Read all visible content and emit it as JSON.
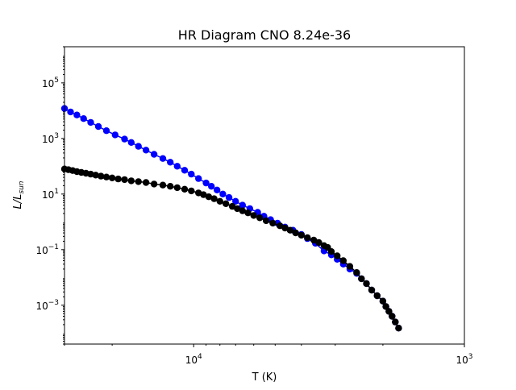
{
  "chart_data": {
    "type": "scatter",
    "title": "HR Diagram CNO 8.24e-36",
    "xlabel": "T (K)",
    "ylabel": "L/L",
    "ylabel_sub": "sun",
    "x_scale": "log",
    "x_inverted": true,
    "y_scale": "log",
    "xlim": [
      30000,
      1000
    ],
    "ylim": [
      4e-05,
      2000000
    ],
    "x_ticks": [
      {
        "value": 10000,
        "base": "10",
        "exp": "4"
      },
      {
        "value": 1000,
        "base": "10",
        "exp": "3"
      }
    ],
    "y_ticks": [
      {
        "value": 0.001,
        "base": "10",
        "exp": "−3"
      },
      {
        "value": 0.1,
        "base": "10",
        "exp": "−1"
      },
      {
        "value": 10,
        "base": "10",
        "exp": "1"
      },
      {
        "value": 1000,
        "base": "10",
        "exp": "3"
      },
      {
        "value": 100000,
        "base": "10",
        "exp": "5"
      }
    ],
    "grid": false,
    "legend": "none",
    "series": [
      {
        "color": "#0000ff",
        "points": [
          [
            30000,
            12000
          ],
          [
            28500,
            9000
          ],
          [
            27000,
            7000
          ],
          [
            25500,
            5200
          ],
          [
            24000,
            3800
          ],
          [
            22500,
            2700
          ],
          [
            21000,
            1900
          ],
          [
            19500,
            1350
          ],
          [
            18000,
            950
          ],
          [
            17000,
            720
          ],
          [
            16000,
            520
          ],
          [
            15000,
            380
          ],
          [
            14000,
            270
          ],
          [
            13000,
            190
          ],
          [
            12200,
            140
          ],
          [
            11500,
            100
          ],
          [
            10800,
            72
          ],
          [
            10200,
            52
          ],
          [
            9600,
            36
          ],
          [
            9000,
            25
          ],
          [
            8600,
            19
          ],
          [
            8200,
            14
          ],
          [
            7800,
            10
          ],
          [
            7400,
            7.5
          ],
          [
            7000,
            5.5
          ],
          [
            6600,
            4
          ],
          [
            6200,
            3
          ],
          [
            5800,
            2.2
          ],
          [
            5500,
            1.6
          ],
          [
            5200,
            1.2
          ],
          [
            4900,
            0.9
          ],
          [
            4600,
            0.65
          ],
          [
            4300,
            0.5
          ],
          [
            4000,
            0.35
          ],
          [
            3800,
            0.25
          ],
          [
            3550,
            0.17
          ],
          [
            3300,
            0.09
          ],
          [
            3100,
            0.065
          ],
          [
            2950,
            0.045
          ],
          [
            2800,
            0.03
          ],
          [
            2650,
            0.02
          ],
          [
            2500,
            0.014
          ],
          [
            2400,
            0.009
          ],
          [
            2300,
            0.006
          ],
          [
            2200,
            0.0035
          ],
          [
            2100,
            0.0022
          ],
          [
            2000,
            0.0014
          ],
          [
            1950,
            0.0009
          ],
          [
            1900,
            0.0006
          ],
          [
            1850,
            0.0004
          ],
          [
            1800,
            0.00025
          ],
          [
            1750,
            0.00015
          ]
        ]
      },
      {
        "color": "#000000",
        "points": [
          [
            30000,
            80
          ],
          [
            29000,
            75
          ],
          [
            28000,
            70
          ],
          [
            27000,
            64
          ],
          [
            26000,
            60
          ],
          [
            25000,
            56
          ],
          [
            24000,
            52
          ],
          [
            23000,
            48
          ],
          [
            22000,
            44
          ],
          [
            21000,
            41
          ],
          [
            20000,
            38
          ],
          [
            19000,
            35
          ],
          [
            18000,
            33
          ],
          [
            17000,
            30
          ],
          [
            16000,
            28
          ],
          [
            15000,
            26
          ],
          [
            14000,
            23
          ],
          [
            13000,
            21
          ],
          [
            12200,
            19
          ],
          [
            11500,
            17
          ],
          [
            10800,
            15
          ],
          [
            10200,
            13
          ],
          [
            9600,
            11
          ],
          [
            9200,
            9.5
          ],
          [
            8800,
            8
          ],
          [
            8400,
            6.8
          ],
          [
            8000,
            5.5
          ],
          [
            7600,
            4.5
          ],
          [
            7200,
            3.6
          ],
          [
            6900,
            3
          ],
          [
            6600,
            2.5
          ],
          [
            6300,
            2.1
          ],
          [
            6000,
            1.7
          ],
          [
            5700,
            1.4
          ],
          [
            5400,
            1.1
          ],
          [
            5100,
            0.9
          ],
          [
            4800,
            0.72
          ],
          [
            4600,
            0.6
          ],
          [
            4400,
            0.5
          ],
          [
            4200,
            0.4
          ],
          [
            4000,
            0.33
          ],
          [
            3800,
            0.27
          ],
          [
            3600,
            0.22
          ],
          [
            3450,
            0.18
          ],
          [
            3300,
            0.14
          ],
          [
            3200,
            0.12
          ],
          [
            3100,
            0.085
          ],
          [
            2950,
            0.06
          ],
          [
            2800,
            0.04
          ],
          [
            2650,
            0.025
          ],
          [
            2500,
            0.015
          ],
          [
            2400,
            0.009
          ],
          [
            2300,
            0.006
          ],
          [
            2200,
            0.0035
          ],
          [
            2100,
            0.0022
          ],
          [
            2000,
            0.0014
          ],
          [
            1950,
            0.0009
          ],
          [
            1900,
            0.0006
          ],
          [
            1850,
            0.0004
          ],
          [
            1800,
            0.00025
          ],
          [
            1750,
            0.00015
          ]
        ]
      }
    ]
  }
}
